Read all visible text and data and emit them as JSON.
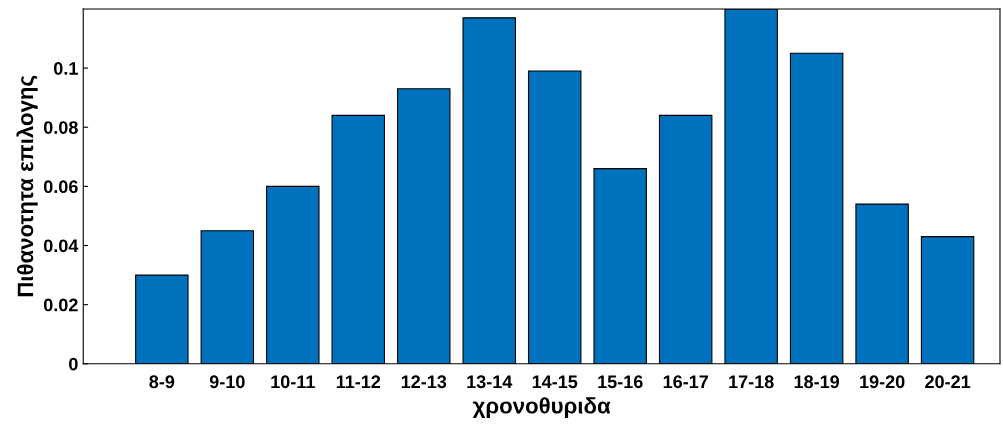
{
  "chart_data": {
    "type": "bar",
    "xlabel": "χρονοθυριδα",
    "ylabel": "Πιθανοτητα επιλογης",
    "categories": [
      "8-9",
      "9-10",
      "10-11",
      "11-12",
      "12-13",
      "13-14",
      "14-15",
      "15-16",
      "16-17",
      "17-18",
      "18-19",
      "19-20",
      "20-21"
    ],
    "values": [
      0.03,
      0.045,
      0.06,
      0.084,
      0.093,
      0.117,
      0.099,
      0.066,
      0.084,
      0.12,
      0.105,
      0.054,
      0.043
    ],
    "color": "#0072bd",
    "ylim": [
      0,
      0.12
    ],
    "yticks": [
      0,
      0.02,
      0.04,
      0.06,
      0.08,
      0.1
    ],
    "grid": false
  }
}
